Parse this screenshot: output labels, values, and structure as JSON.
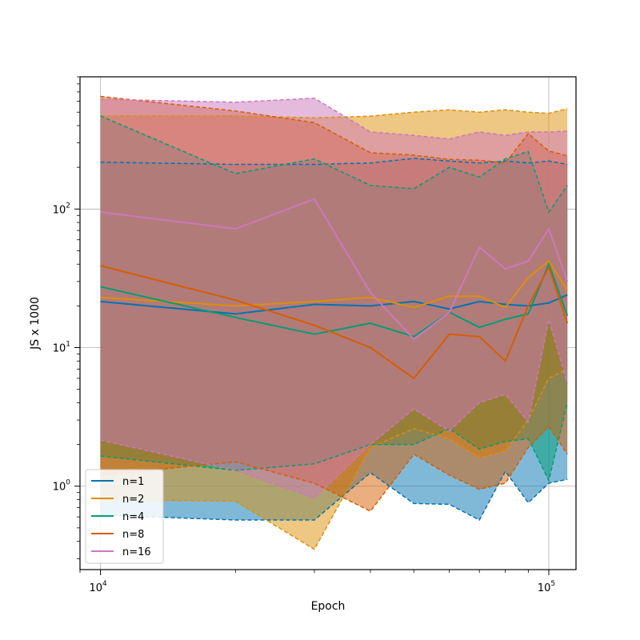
{
  "chart_data": {
    "type": "line",
    "xscale": "log",
    "yscale": "log",
    "xlabel": "Epoch",
    "ylabel": "JS x 1000",
    "xlim": [
      9000,
      115000
    ],
    "ylim": [
      0.25,
      900
    ],
    "grid": true,
    "legend_position": "lower-left",
    "xticks": [
      {
        "value": 10000,
        "base": "10",
        "exp": "4"
      },
      {
        "value": 100000,
        "base": "10",
        "exp": "5"
      }
    ],
    "yticks": [
      {
        "value": 1,
        "label": "10",
        "exp": "0"
      },
      {
        "value": 10,
        "label": "10",
        "exp": "1"
      },
      {
        "value": 100,
        "label": "10",
        "exp": "2"
      }
    ],
    "x": [
      10000,
      20000,
      30000,
      40000,
      50000,
      60000,
      70000,
      80000,
      90000,
      100000,
      110000
    ],
    "series": [
      {
        "name": "n=1",
        "color": "#0173b2",
        "mean": [
          21.5,
          17.5,
          20.5,
          20,
          21.5,
          19,
          21.5,
          20.5,
          20,
          21,
          24
        ],
        "upper": [
          218,
          210,
          210,
          215,
          232,
          222,
          215,
          222,
          215,
          222,
          210
        ],
        "lower": [
          0.62,
          0.57,
          0.57,
          1.25,
          0.75,
          0.74,
          0.57,
          1.28,
          0.76,
          1.05,
          1.12
        ]
      },
      {
        "name": "n=2",
        "color": "#de8f05",
        "mean": [
          23,
          20,
          21.5,
          23,
          19.5,
          23.5,
          23.5,
          19.5,
          32,
          42,
          26
        ],
        "upper": [
          470,
          470,
          455,
          468,
          500,
          520,
          500,
          520,
          500,
          490,
          530
        ],
        "lower": [
          0.8,
          0.78,
          0.35,
          1.9,
          2.6,
          2.2,
          1.6,
          1.8,
          3.0,
          6.0,
          7.0
        ]
      },
      {
        "name": "n=4",
        "color": "#029e73",
        "mean": [
          27.5,
          16.5,
          12.5,
          15,
          12,
          18,
          14,
          16,
          17.5,
          40,
          17
        ],
        "upper": [
          470,
          180,
          230,
          148,
          140,
          200,
          170,
          230,
          260,
          95,
          148
        ],
        "lower": [
          1.65,
          1.3,
          1.45,
          2.0,
          2.0,
          2.6,
          1.85,
          2.1,
          2.2,
          1.1,
          4.0
        ]
      },
      {
        "name": "n=8",
        "color": "#d55e00",
        "mean": [
          39,
          22,
          14.5,
          10,
          6,
          12.5,
          12,
          8,
          20,
          38,
          15
        ],
        "upper": [
          650,
          510,
          420,
          255,
          245,
          228,
          225,
          215,
          350,
          262,
          242
        ],
        "lower": [
          1.2,
          1.5,
          1.05,
          0.66,
          1.7,
          1.2,
          0.95,
          1.05,
          1.9,
          2.7,
          1.7
        ]
      },
      {
        "name": "n=16",
        "color": "#cc78bc",
        "mean": [
          95,
          72,
          118,
          25,
          11.5,
          18,
          53,
          37,
          42,
          72,
          30
        ],
        "upper": [
          620,
          590,
          630,
          360,
          340,
          320,
          360,
          340,
          360,
          360,
          365
        ],
        "lower": [
          2.15,
          1.3,
          0.82,
          2.0,
          3.6,
          2.5,
          4.0,
          4.6,
          2.9,
          16.0,
          5.5
        ]
      }
    ]
  }
}
